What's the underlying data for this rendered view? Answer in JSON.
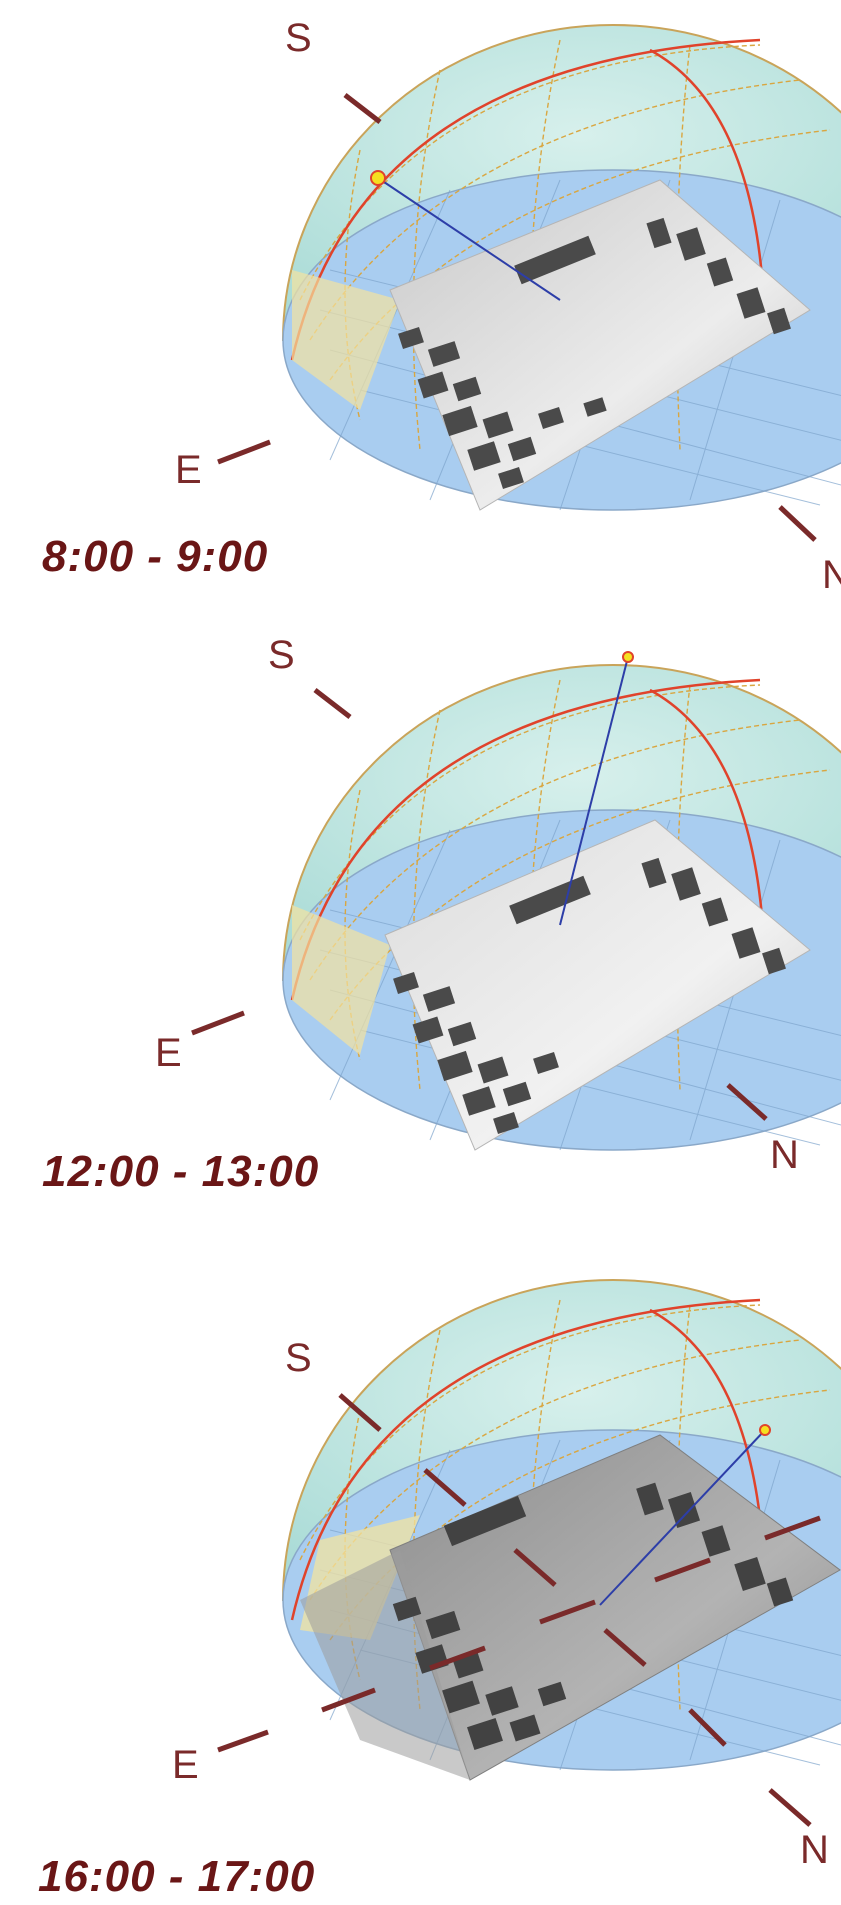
{
  "panels": [
    {
      "compass": {
        "south": "S",
        "east": "E",
        "north": "N"
      },
      "time_label": "8:00 - 9:00",
      "shadow_level": "light"
    },
    {
      "compass": {
        "south": "S",
        "east": "E",
        "north": "N"
      },
      "time_label": "12:00 - 13:00",
      "shadow_level": "light"
    },
    {
      "compass": {
        "south": "S",
        "east": "E",
        "north": "N"
      },
      "time_label": "16:00 - 17:00",
      "shadow_level": "heavy"
    }
  ],
  "colors": {
    "dome_fill": "#bfe5e2",
    "ground_disc": "#a9cdf0",
    "sun_path": "#e0432b",
    "analemma": "#d9a640",
    "sun_ray": "#2d3ea8",
    "sun_marker": "#f5e020",
    "terrain": "#d9d9d9",
    "buildings": "#4a4a4a",
    "compass_tick": "#7a2a2a",
    "time_text": "#6a1616"
  },
  "icons": [
    "sun-marker-icon",
    "compass-tick-icon"
  ]
}
